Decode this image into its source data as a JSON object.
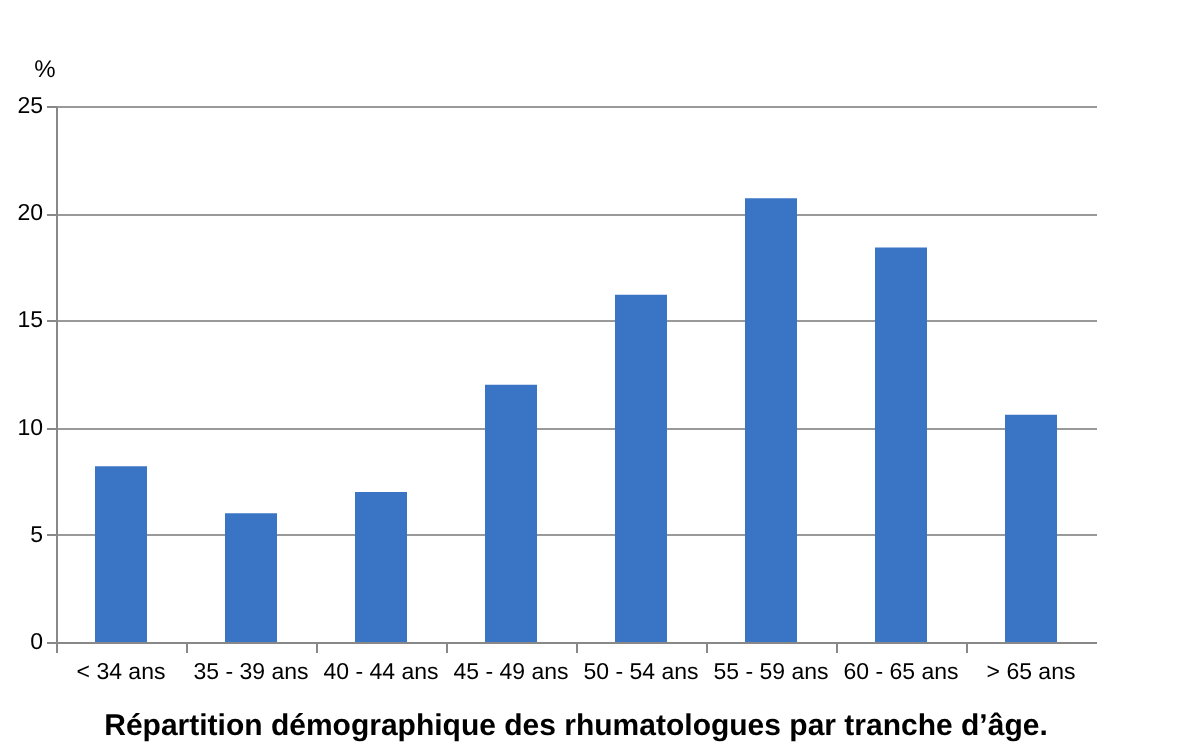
{
  "chart_data": {
    "type": "bar",
    "title": "Répartition démographique des rhumatologues par tranche d’âge.",
    "ylabel": "%",
    "categories": [
      "< 34 ans",
      "35 - 39 ans",
      "40 - 44 ans",
      "45 - 49 ans",
      "50 - 54 ans",
      "55 - 59 ans",
      "60 - 65 ans",
      "> 65 ans"
    ],
    "values": [
      8.2,
      6.0,
      7.0,
      12.0,
      16.2,
      20.7,
      18.4,
      10.6
    ],
    "color": "#3a74c4",
    "ylim": [
      0,
      25
    ],
    "yticks": [
      0,
      5,
      10,
      15,
      20,
      25
    ],
    "grid": "y"
  }
}
